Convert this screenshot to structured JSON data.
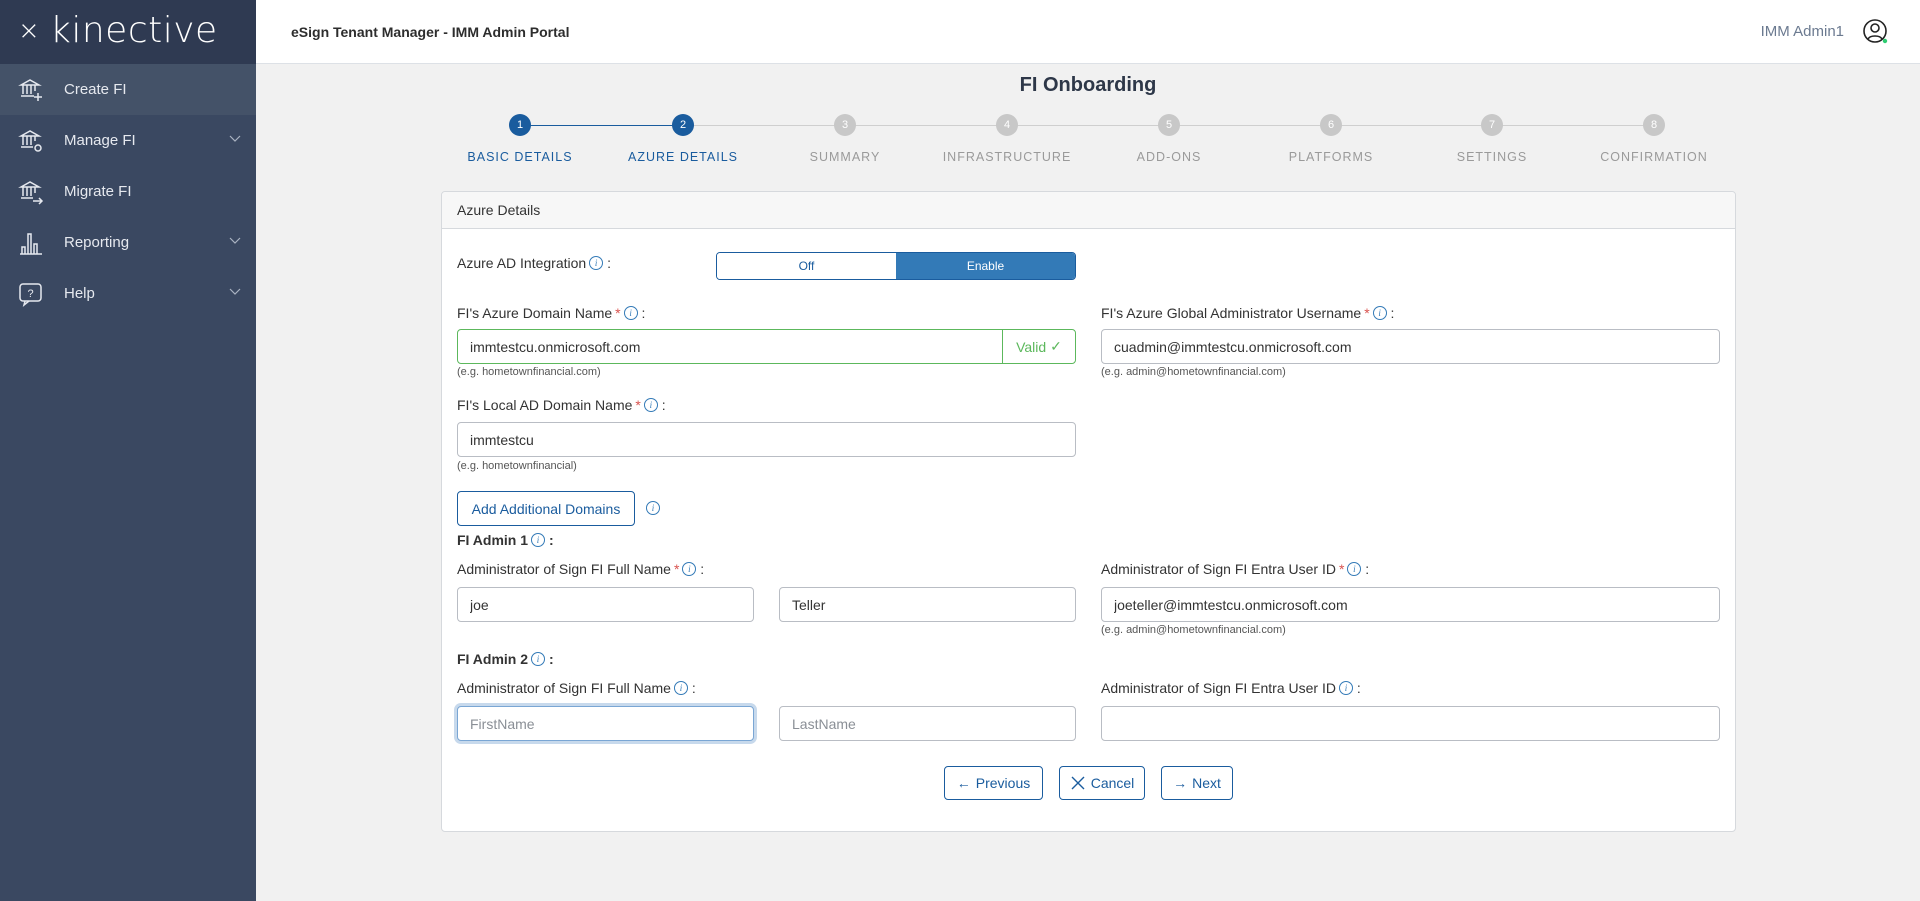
{
  "brand": {
    "logo_text": "kinective",
    "close_icon": "close-icon"
  },
  "sidebar": {
    "items": [
      {
        "label": "Create FI",
        "icon": "bank-plus-icon",
        "active": true
      },
      {
        "label": "Manage FI",
        "icon": "bank-gear-icon",
        "expandable": true
      },
      {
        "label": "Migrate FI",
        "icon": "bank-arrow-icon"
      },
      {
        "label": "Reporting",
        "icon": "bar-chart-icon",
        "expandable": true
      },
      {
        "label": "Help",
        "icon": "help-bubble-icon",
        "expandable": true
      }
    ]
  },
  "header": {
    "title": "eSign Tenant Manager - IMM Admin Portal",
    "user": "IMM Admin1",
    "status_color": "#2ecc71"
  },
  "page": {
    "title": "FI Onboarding"
  },
  "stepper": {
    "current": 2,
    "steps": [
      {
        "num": "1",
        "label": "BASIC DETAILS"
      },
      {
        "num": "2",
        "label": "AZURE DETAILS"
      },
      {
        "num": "3",
        "label": "SUMMARY"
      },
      {
        "num": "4",
        "label": "INFRASTRUCTURE"
      },
      {
        "num": "5",
        "label": "ADD-ONS"
      },
      {
        "num": "6",
        "label": "PLATFORMS"
      },
      {
        "num": "7",
        "label": "SETTINGS"
      },
      {
        "num": "8",
        "label": "CONFIRMATION"
      }
    ]
  },
  "card": {
    "title": "Azure Details",
    "azure_ad": {
      "label": "Azure AD Integration",
      "off": "Off",
      "enable": "Enable",
      "selected": "Enable"
    },
    "domain": {
      "label": "FI's Azure Domain Name",
      "value": "immtestcu.onmicrosoft.com",
      "valid": "Valid",
      "hint": "(e.g. hometownfinancial.com)"
    },
    "global_admin": {
      "label": "FI's Azure Global Administrator Username",
      "value": "cuadmin@immtestcu.onmicrosoft.com",
      "hint": "(e.g. admin@hometownfinancial.com)"
    },
    "local_ad": {
      "label": "FI's Local AD Domain Name",
      "value": "immtestcu",
      "hint": "(e.g. hometownfinancial)"
    },
    "add_domains": "Add Additional Domains",
    "admin1": {
      "heading": "FI Admin 1",
      "name_label": "Administrator of Sign FI Full Name",
      "first": "joe",
      "last": "Teller",
      "id_label": "Administrator of Sign FI Entra User ID",
      "id_value": "joeteller@immtestcu.onmicrosoft.com",
      "hint": "(e.g. admin@hometownfinancial.com)"
    },
    "admin2": {
      "heading": "FI Admin 2",
      "name_label": "Administrator of Sign FI Full Name",
      "first_placeholder": "FirstName",
      "last_placeholder": "LastName",
      "id_label": "Administrator of Sign FI Entra User ID",
      "id_value": ""
    },
    "buttons": {
      "previous": "Previous",
      "cancel": "Cancel",
      "next": "Next"
    }
  },
  "colors": {
    "primary": "#1a5c9e",
    "enable": "#337ab7",
    "sidebar": "#3a4861",
    "valid": "#5cb85c",
    "inactive_step": "#c8c8c8"
  }
}
